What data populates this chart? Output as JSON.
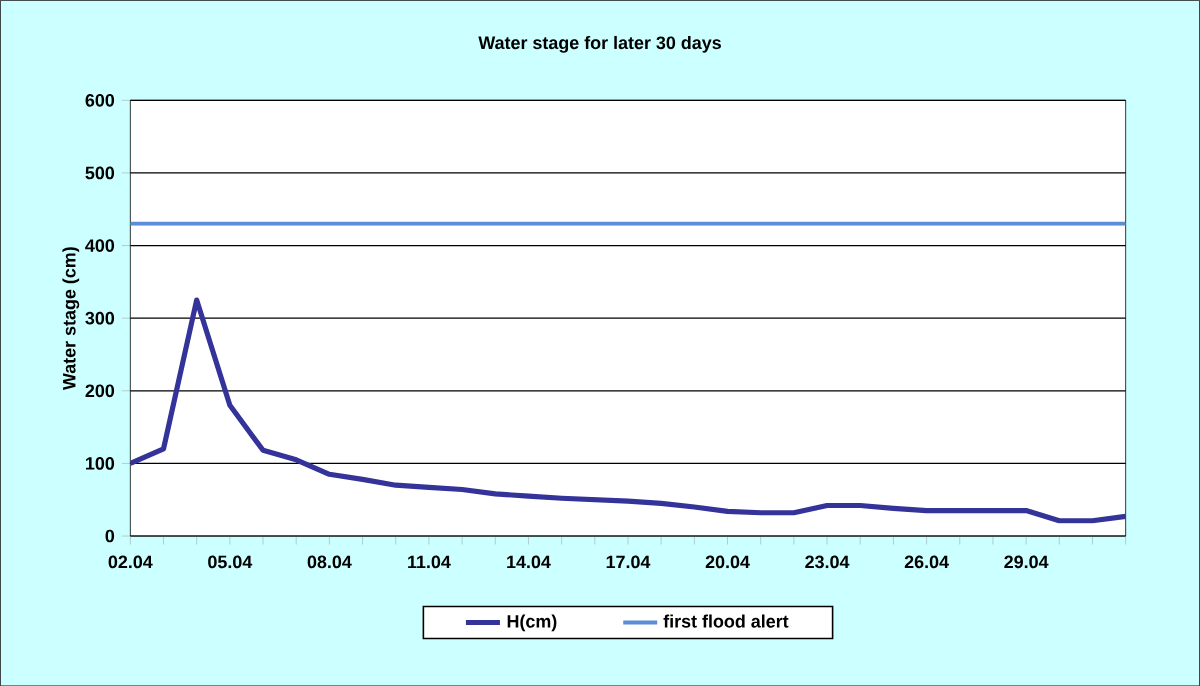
{
  "chart_data": {
    "type": "line",
    "title": "Water stage for later 30 days",
    "ylabel": "Water stage (cm)",
    "categories": [
      "02.04",
      null,
      null,
      "05.04",
      null,
      null,
      "08.04",
      null,
      null,
      "11.04",
      null,
      null,
      "14.04",
      null,
      null,
      "17.04",
      null,
      null,
      "20.04",
      null,
      null,
      "23.04",
      null,
      null,
      "26.04",
      null,
      null,
      "29.04",
      null,
      null,
      null
    ],
    "series": [
      {
        "name": "H(cm)",
        "color": "#333399",
        "values": [
          100,
          120,
          325,
          180,
          118,
          105,
          85,
          78,
          70,
          67,
          64,
          58,
          55,
          52,
          50,
          48,
          45,
          40,
          34,
          32,
          32,
          42,
          42,
          38,
          35,
          35,
          35,
          35,
          21,
          21,
          27
        ]
      }
    ],
    "ref_lines": [
      {
        "axis": "y",
        "value": 430,
        "label": "first flood alert",
        "color": "#5b8ed6"
      }
    ],
    "ylim": [
      0,
      600
    ],
    "yticks": [
      0,
      100,
      200,
      300,
      400,
      500,
      600
    ],
    "grid": "y",
    "legend": "bottom",
    "marker": "none",
    "line_style": "solid"
  }
}
